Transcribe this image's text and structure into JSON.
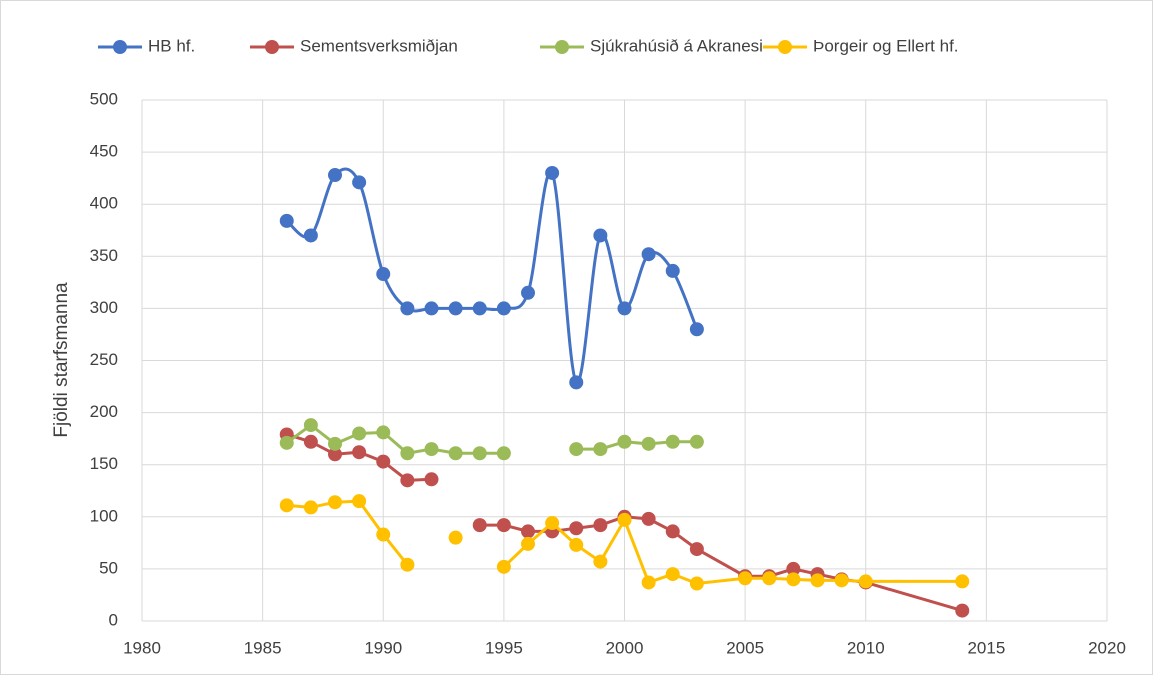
{
  "chart_data": {
    "type": "line",
    "ylabel": "Fjöldi starfsmanna",
    "xlim": [
      1980,
      2020
    ],
    "xticks": [
      1980,
      1985,
      1990,
      1995,
      2000,
      2005,
      2010,
      2015,
      2020
    ],
    "ylim": [
      0,
      500
    ],
    "yticks": [
      0,
      50,
      100,
      150,
      200,
      250,
      300,
      350,
      400,
      450,
      500
    ],
    "grid": true,
    "legend": "top",
    "series": [
      {
        "name": "HB hf.",
        "color": "#4472c4",
        "smooth": true,
        "x": [
          1986,
          1987,
          1988,
          1989,
          1990,
          1991,
          1992,
          1993,
          1994,
          1995,
          1996,
          1997,
          1998,
          1999,
          2000,
          2001,
          2002,
          2003
        ],
        "values": [
          384,
          370,
          428,
          421,
          333,
          300,
          300,
          300,
          300,
          300,
          315,
          430,
          229,
          370,
          300,
          352,
          336,
          280
        ]
      },
      {
        "name": "Sementsverksmiðjan",
        "color": "#c0504d",
        "smooth": false,
        "x": [
          1986,
          1987,
          1988,
          1989,
          1990,
          1991,
          1992,
          1993,
          1994,
          1995,
          1996,
          1997,
          1998,
          1999,
          2000,
          2001,
          2002,
          2003,
          2005,
          2006,
          2007,
          2008,
          2009,
          2010,
          2014
        ],
        "values": [
          179,
          172,
          160,
          162,
          153,
          135,
          136,
          null,
          92,
          92,
          86,
          86,
          89,
          92,
          100,
          98,
          86,
          69,
          43,
          43,
          50,
          45,
          40,
          37,
          10
        ]
      },
      {
        "name": "Sjúkrahúsið á Akranesi",
        "color": "#9bbb59",
        "smooth": false,
        "x": [
          1986,
          1987,
          1988,
          1989,
          1990,
          1991,
          1992,
          1993,
          1994,
          1995,
          1996,
          1998,
          1999,
          2000,
          2001,
          2002,
          2003
        ],
        "values": [
          171,
          188,
          170,
          180,
          181,
          161,
          165,
          161,
          161,
          161,
          null,
          165,
          165,
          172,
          170,
          172,
          172
        ]
      },
      {
        "name": "Þorgeir og Ellert hf.",
        "color": "#ffc000",
        "smooth": false,
        "x": [
          1986,
          1987,
          1988,
          1989,
          1990,
          1991,
          1992,
          1993,
          1994,
          1995,
          1996,
          1997,
          1998,
          1999,
          2000,
          2001,
          2002,
          2003,
          2005,
          2006,
          2007,
          2008,
          2009,
          2010,
          2014
        ],
        "values": [
          111,
          109,
          114,
          115,
          83,
          54,
          null,
          80,
          null,
          52,
          74,
          94,
          73,
          57,
          97,
          37,
          45,
          36,
          41,
          41,
          40,
          39,
          39,
          38,
          38
        ]
      }
    ]
  }
}
